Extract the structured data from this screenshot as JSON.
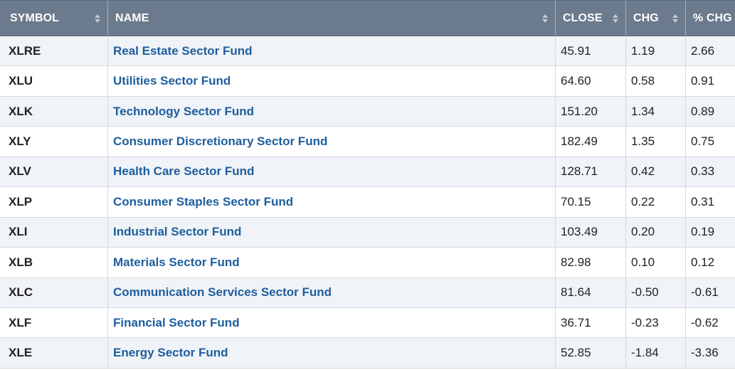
{
  "colors": {
    "header_bg": "#6c7a8d",
    "header_text": "#ffffff",
    "link": "#1d5e9e",
    "alt_row": "#f0f3f7",
    "border": "#d4d9df"
  },
  "headers": {
    "symbol": "SYMBOL",
    "name": "NAME",
    "close": "CLOSE",
    "chg": "CHG",
    "pct_chg": "% CHG"
  },
  "sort_icon": "sort-updown-icon",
  "rows": [
    {
      "symbol": "XLRE",
      "name": "Real Estate Sector Fund",
      "close": "45.91",
      "chg": "1.19",
      "pct_chg": "2.66"
    },
    {
      "symbol": "XLU",
      "name": "Utilities Sector Fund",
      "close": "64.60",
      "chg": "0.58",
      "pct_chg": "0.91"
    },
    {
      "symbol": "XLK",
      "name": "Technology Sector Fund",
      "close": "151.20",
      "chg": "1.34",
      "pct_chg": "0.89"
    },
    {
      "symbol": "XLY",
      "name": "Consumer Discretionary Sector Fund",
      "close": "182.49",
      "chg": "1.35",
      "pct_chg": "0.75"
    },
    {
      "symbol": "XLV",
      "name": "Health Care Sector Fund",
      "close": "128.71",
      "chg": "0.42",
      "pct_chg": "0.33"
    },
    {
      "symbol": "XLP",
      "name": "Consumer Staples Sector Fund",
      "close": "70.15",
      "chg": "0.22",
      "pct_chg": "0.31"
    },
    {
      "symbol": "XLI",
      "name": "Industrial Sector Fund",
      "close": "103.49",
      "chg": "0.20",
      "pct_chg": "0.19"
    },
    {
      "symbol": "XLB",
      "name": "Materials Sector Fund",
      "close": "82.98",
      "chg": "0.10",
      "pct_chg": "0.12"
    },
    {
      "symbol": "XLC",
      "name": "Communication Services Sector Fund",
      "close": "81.64",
      "chg": "-0.50",
      "pct_chg": "-0.61"
    },
    {
      "symbol": "XLF",
      "name": "Financial Sector Fund",
      "close": "36.71",
      "chg": "-0.23",
      "pct_chg": "-0.62"
    },
    {
      "symbol": "XLE",
      "name": "Energy Sector Fund",
      "close": "52.85",
      "chg": "-1.84",
      "pct_chg": "-3.36"
    }
  ]
}
